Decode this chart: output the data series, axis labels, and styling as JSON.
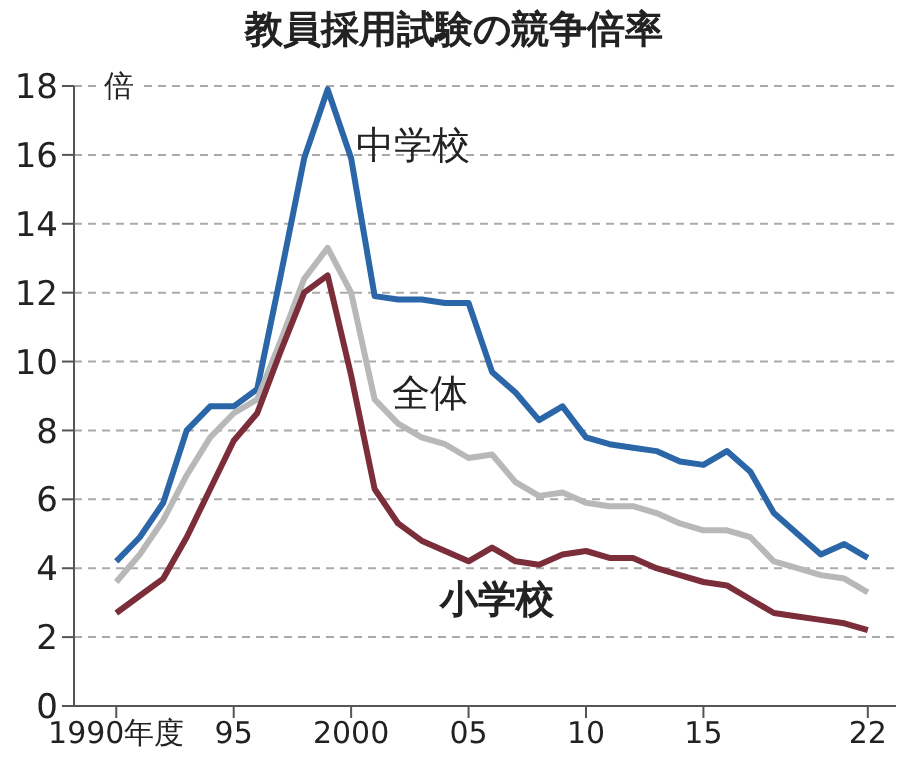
{
  "chart_data": {
    "type": "line",
    "title": "教員採用試験の競争倍率",
    "ylabel": "倍",
    "x": [
      1990,
      1991,
      1992,
      1993,
      1994,
      1995,
      1996,
      1997,
      1998,
      1999,
      2000,
      2001,
      2002,
      2003,
      2004,
      2005,
      2006,
      2007,
      2008,
      2009,
      2010,
      2011,
      2012,
      2013,
      2014,
      2015,
      2016,
      2017,
      2018,
      2019,
      2020,
      2021,
      2022
    ],
    "series": [
      {
        "name": "中学校",
        "color": "#2b66a8",
        "values": [
          4.2,
          4.9,
          5.9,
          8.0,
          8.7,
          8.7,
          9.2,
          12.5,
          15.9,
          17.9,
          15.9,
          11.9,
          11.8,
          11.8,
          11.7,
          11.7,
          9.7,
          9.1,
          8.3,
          8.7,
          7.8,
          7.6,
          7.5,
          7.4,
          7.1,
          7.0,
          7.4,
          6.8,
          5.6,
          5.0,
          4.4,
          4.7,
          4.3
        ]
      },
      {
        "name": "全体",
        "color": "#b8b8b8",
        "values": [
          3.6,
          4.4,
          5.4,
          6.7,
          7.8,
          8.5,
          8.9,
          10.6,
          12.4,
          13.3,
          12.0,
          8.9,
          8.2,
          7.8,
          7.6,
          7.2,
          7.3,
          6.5,
          6.1,
          6.2,
          5.9,
          5.8,
          5.8,
          5.6,
          5.3,
          5.1,
          5.1,
          4.9,
          4.2,
          4.0,
          3.8,
          3.7,
          3.3
        ]
      },
      {
        "name": "小学校",
        "color": "#7b2d3a",
        "values": [
          2.7,
          3.2,
          3.7,
          4.9,
          6.3,
          7.7,
          8.5,
          10.3,
          12.0,
          12.5,
          9.6,
          6.3,
          5.3,
          4.8,
          4.5,
          4.2,
          4.6,
          4.2,
          4.1,
          4.4,
          4.5,
          4.3,
          4.3,
          4.0,
          3.8,
          3.6,
          3.5,
          3.1,
          2.7,
          2.6,
          2.5,
          2.4,
          2.2
        ]
      }
    ],
    "xlim": [
      1988.2,
      2023.2
    ],
    "xticks": [
      {
        "value": 1990,
        "label": "1990年度"
      },
      {
        "value": 1995,
        "label": "95"
      },
      2000,
      {
        "value": 2005,
        "label": "05"
      },
      {
        "value": 2010,
        "label": "10"
      },
      {
        "value": 2015,
        "label": "15"
      },
      {
        "value": 2022,
        "label": "22"
      }
    ],
    "ylim": [
      0,
      18
    ],
    "yticks": [
      0,
      2,
      4,
      6,
      8,
      10,
      12,
      14,
      16,
      18
    ],
    "grid": "y",
    "legend": false,
    "marker": "none",
    "line_style": "solid"
  }
}
